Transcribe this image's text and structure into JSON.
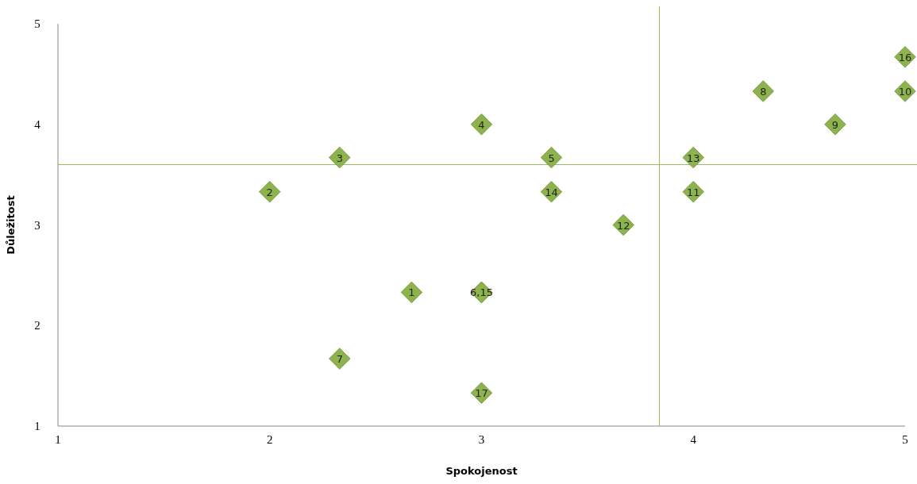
{
  "chart_data": {
    "type": "scatter",
    "xlabel": "Spokojenost",
    "ylabel": "Důležitost",
    "x": [
      2.67,
      2,
      2.33,
      3,
      3.33,
      3,
      2.33,
      4.33,
      4.67,
      5,
      4,
      3.67,
      4,
      3.33,
      3,
      5,
      3
    ],
    "series": [
      {
        "color": "#8db34c",
        "values": [
          2.33,
          3.33,
          3.67,
          4,
          3.67,
          2.33,
          1.67,
          4.33,
          4,
          4.33,
          3.33,
          3,
          3.67,
          3.33,
          2.33,
          4.67,
          1.33
        ]
      }
    ],
    "marker": "diamond",
    "xlim": [
      1,
      5
    ],
    "ylim": [
      1,
      5
    ],
    "xticks": [
      1,
      2,
      3,
      4,
      5
    ],
    "yticks": [
      1,
      2,
      3,
      4,
      5
    ],
    "grid": false,
    "ref_lines": [
      {
        "axis": "x",
        "value": 3.84,
        "color": "#9bb35a"
      },
      {
        "axis": "y",
        "value": 3.6,
        "color": "#9bb35a"
      }
    ],
    "annotations": [
      {
        "text": "1",
        "x": 2.67,
        "y": 2.33
      },
      {
        "text": "2",
        "x": 2,
        "y": 3.33
      },
      {
        "text": "3",
        "x": 2.33,
        "y": 3.67
      },
      {
        "text": "4",
        "x": 3,
        "y": 4
      },
      {
        "text": "5",
        "x": 3.33,
        "y": 3.67
      },
      {
        "text": "6,15",
        "x": 3,
        "y": 2.33
      },
      {
        "text": "7",
        "x": 2.33,
        "y": 1.67
      },
      {
        "text": "8",
        "x": 4.33,
        "y": 4.33
      },
      {
        "text": "9",
        "x": 4.67,
        "y": 4
      },
      {
        "text": "10",
        "x": 5,
        "y": 4.33
      },
      {
        "text": "11",
        "x": 4,
        "y": 3.33
      },
      {
        "text": "12",
        "x": 3.67,
        "y": 3
      },
      {
        "text": "13",
        "x": 4,
        "y": 3.67
      },
      {
        "text": "14",
        "x": 3.33,
        "y": 3.33
      },
      {
        "text": "16",
        "x": 5,
        "y": 4.67
      },
      {
        "text": "17",
        "x": 3,
        "y": 1.33
      }
    ]
  }
}
